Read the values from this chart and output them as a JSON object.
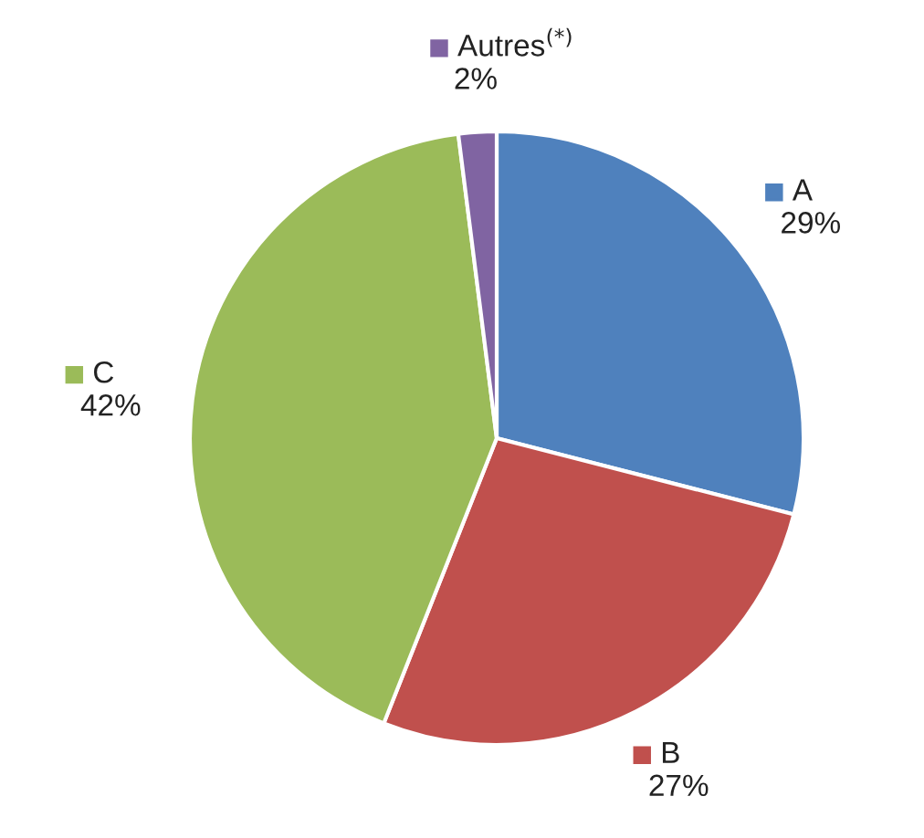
{
  "chart_data": {
    "type": "pie",
    "categories": [
      "A",
      "B",
      "C",
      "Autres$^{(*)}$"
    ],
    "values": [
      29,
      27,
      42,
      2
    ],
    "value_labels": [
      "29%",
      "27%",
      "42%",
      "2%"
    ],
    "colors": [
      "#4f81bd",
      "#c0504d",
      "#9bbb59",
      "#8064a2"
    ],
    "legend": "top left"
  }
}
